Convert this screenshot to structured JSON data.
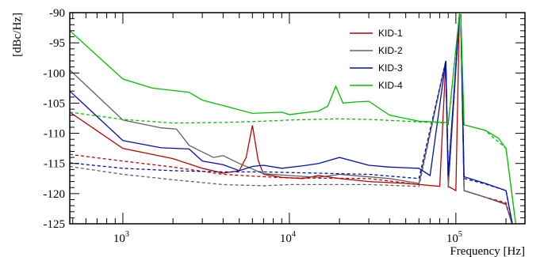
{
  "chart_data": {
    "type": "line",
    "title": "",
    "xlabel": "Frequency [Hz]",
    "ylabel": "[dBc/Hz]",
    "xscale": "log",
    "xlim": [
      480,
      260000
    ],
    "ylim": [
      -125,
      -90
    ],
    "x_ticks": [
      {
        "value": 1000,
        "base": "10",
        "exp": "3"
      },
      {
        "value": 10000,
        "base": "10",
        "exp": "4"
      },
      {
        "value": 100000,
        "base": "10",
        "exp": "5"
      }
    ],
    "y_ticks": [
      -90,
      -95,
      -100,
      -105,
      -110,
      -115,
      -120,
      -125
    ],
    "grid": false,
    "legend_position": "top-right",
    "series": [
      {
        "name": "KID-1",
        "color": "#c00000",
        "solid": [
          [
            480,
            -106.5
          ],
          [
            1000,
            -112.5
          ],
          [
            2000,
            -114.2
          ],
          [
            3000,
            -115.8
          ],
          [
            4000,
            -116.6
          ],
          [
            5000,
            -116.2
          ],
          [
            5500,
            -114
          ],
          [
            6000,
            -108.7
          ],
          [
            6500,
            -114.5
          ],
          [
            7000,
            -116.8
          ],
          [
            9000,
            -117.3
          ],
          [
            12000,
            -117.5
          ],
          [
            15000,
            -117
          ],
          [
            20000,
            -117.5
          ],
          [
            30000,
            -118
          ],
          [
            50000,
            -118.3
          ],
          [
            80000,
            -118.8
          ],
          [
            87000,
            -98
          ],
          [
            90000,
            -118.8
          ],
          [
            100000,
            -119.5
          ],
          [
            105000,
            -90.3
          ],
          [
            107000,
            -90.3
          ],
          [
            112000,
            -119.5
          ],
          [
            150000,
            -120.6
          ],
          [
            200000,
            -121.7
          ],
          [
            220000,
            -125.5
          ]
        ],
        "dashed": [
          [
            480,
            -113.5
          ],
          [
            1000,
            -114.6
          ],
          [
            2000,
            -115.6
          ],
          [
            4000,
            -116.8
          ],
          [
            7000,
            -117.2
          ],
          [
            10000,
            -117.4
          ],
          [
            30000,
            -117.5
          ],
          [
            60000,
            -118.5
          ],
          [
            87000,
            -98
          ],
          [
            90000,
            -119
          ],
          [
            105000,
            -90.3
          ],
          [
            107000,
            -90.3
          ],
          [
            112000,
            -119.5
          ],
          [
            150000,
            -120.6
          ],
          [
            200000,
            -121.5
          ],
          [
            220000,
            -125.5
          ]
        ]
      },
      {
        "name": "KID-2",
        "color": "#606060",
        "solid": [
          [
            480,
            -99.5
          ],
          [
            1000,
            -107.8
          ],
          [
            1700,
            -109.1
          ],
          [
            2100,
            -109.3
          ],
          [
            2500,
            -112
          ],
          [
            3500,
            -114
          ],
          [
            4000,
            -113.7
          ],
          [
            5000,
            -115
          ],
          [
            7000,
            -116.7
          ],
          [
            10000,
            -117
          ],
          [
            15000,
            -117.3
          ],
          [
            20000,
            -116.8
          ],
          [
            40000,
            -117.5
          ],
          [
            60000,
            -118.3
          ],
          [
            87000,
            -98
          ],
          [
            90000,
            -119
          ],
          [
            105000,
            -90.3
          ],
          [
            107000,
            -90.3
          ],
          [
            112000,
            -119.5
          ],
          [
            150000,
            -120.6
          ],
          [
            200000,
            -121.8
          ],
          [
            220000,
            -125.5
          ]
        ],
        "dashed": [
          [
            480,
            -115.5
          ],
          [
            1000,
            -116.8
          ],
          [
            2000,
            -117.7
          ],
          [
            4000,
            -118.5
          ],
          [
            7000,
            -118.7
          ],
          [
            10000,
            -118.5
          ],
          [
            30000,
            -118.5
          ],
          [
            60000,
            -118.8
          ],
          [
            87000,
            -98
          ],
          [
            90000,
            -119
          ],
          [
            105000,
            -90.3
          ],
          [
            107000,
            -90.3
          ],
          [
            112000,
            -119.5
          ],
          [
            150000,
            -120.6
          ],
          [
            200000,
            -121.8
          ],
          [
            220000,
            -125.5
          ]
        ]
      },
      {
        "name": "KID-3",
        "color": "#0010b0",
        "solid": [
          [
            480,
            -103
          ],
          [
            1000,
            -111.2
          ],
          [
            1700,
            -112.4
          ],
          [
            2500,
            -112.6
          ],
          [
            3000,
            -114.6
          ],
          [
            4000,
            -115.2
          ],
          [
            5000,
            -116.2
          ],
          [
            6000,
            -115.5
          ],
          [
            7000,
            -115.3
          ],
          [
            9000,
            -115.8
          ],
          [
            12000,
            -115.4
          ],
          [
            15000,
            -115
          ],
          [
            20000,
            -114
          ],
          [
            30000,
            -115.3
          ],
          [
            40000,
            -115.6
          ],
          [
            60000,
            -115.8
          ],
          [
            70000,
            -117
          ],
          [
            87000,
            -98
          ],
          [
            90000,
            -117
          ],
          [
            105000,
            -90.3
          ],
          [
            107000,
            -90.3
          ],
          [
            112000,
            -117.2
          ],
          [
            150000,
            -118.3
          ],
          [
            200000,
            -119.5
          ],
          [
            220000,
            -125.5
          ]
        ],
        "dashed": [
          [
            480,
            -114.9
          ],
          [
            1000,
            -115.8
          ],
          [
            2000,
            -116.2
          ],
          [
            4000,
            -116.4
          ],
          [
            7000,
            -116.4
          ],
          [
            10000,
            -116.5
          ],
          [
            30000,
            -116.8
          ],
          [
            60000,
            -117.5
          ],
          [
            87000,
            -98
          ],
          [
            90000,
            -117.2
          ],
          [
            105000,
            -90.3
          ],
          [
            107000,
            -90.3
          ],
          [
            112000,
            -117.5
          ],
          [
            150000,
            -118.4
          ],
          [
            200000,
            -119.5
          ],
          [
            220000,
            -125.5
          ]
        ]
      },
      {
        "name": "KID-4",
        "color": "#00c000",
        "solid": [
          [
            480,
            -93
          ],
          [
            1000,
            -101
          ],
          [
            1500,
            -102.5
          ],
          [
            2500,
            -103.2
          ],
          [
            3000,
            -104.5
          ],
          [
            4000,
            -105.4
          ],
          [
            6000,
            -106.7
          ],
          [
            9000,
            -106.5
          ],
          [
            10000,
            -106.9
          ],
          [
            15000,
            -106.3
          ],
          [
            17000,
            -105.5
          ],
          [
            19000,
            -102.2
          ],
          [
            21000,
            -105
          ],
          [
            25000,
            -104.8
          ],
          [
            30000,
            -104.7
          ],
          [
            40000,
            -107
          ],
          [
            60000,
            -108
          ],
          [
            87000,
            -108.2
          ],
          [
            90000,
            -108.5
          ],
          [
            105000,
            -90.3
          ],
          [
            107000,
            -90.3
          ],
          [
            112000,
            -108.6
          ],
          [
            150000,
            -109.5
          ],
          [
            180000,
            -110.8
          ],
          [
            200000,
            -112.5
          ],
          [
            210000,
            -117
          ],
          [
            230000,
            -125.5
          ]
        ],
        "dashed": [
          [
            480,
            -106.5
          ],
          [
            1000,
            -107.7
          ],
          [
            2000,
            -108.3
          ],
          [
            4000,
            -108.2
          ],
          [
            7000,
            -108
          ],
          [
            10000,
            -107.8
          ],
          [
            20000,
            -107.6
          ],
          [
            30000,
            -107.7
          ],
          [
            60000,
            -108.1
          ],
          [
            87000,
            -108.3
          ],
          [
            90000,
            -108.5
          ],
          [
            105000,
            -90.3
          ],
          [
            107000,
            -90.3
          ],
          [
            112000,
            -108.6
          ],
          [
            150000,
            -109.5
          ],
          [
            200000,
            -112.5
          ],
          [
            210000,
            -117
          ],
          [
            230000,
            -125.5
          ]
        ]
      }
    ]
  }
}
